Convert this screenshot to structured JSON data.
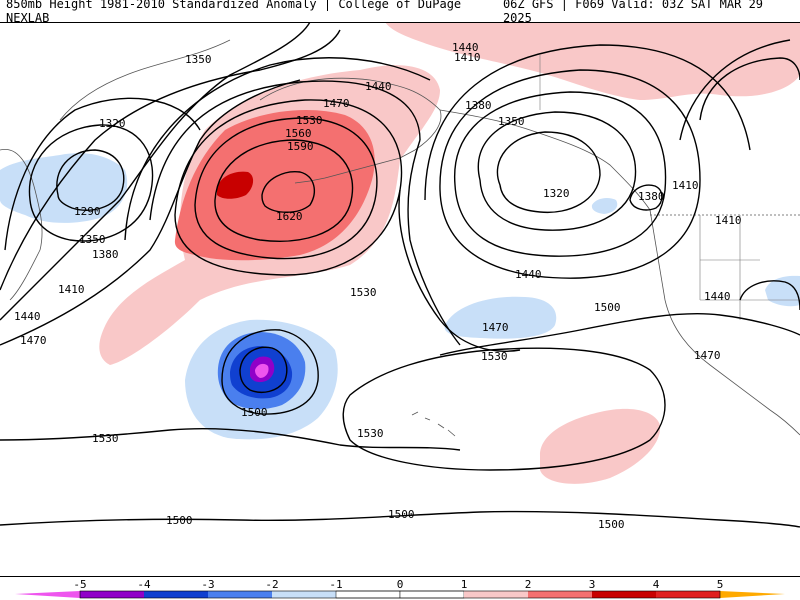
{
  "header": {
    "left_title": "850mb Height 1981-2010 Standardized Anomaly | College of DuPage NEXLAB",
    "right_title": "06Z GFS | F069 Valid: 03Z SAT MAR 29 2025"
  },
  "colors": {
    "neg5": "#ee55ee",
    "neg4": "#9000c8",
    "neg3": "#1040d0",
    "neg2": "#4a7fee",
    "neg1": "#c8dff8",
    "pos1": "#f9c8c8",
    "pos2": "#f47070",
    "pos3": "#c80000",
    "pos4": "#e02020",
    "pos5": "#ffaa00",
    "coast": "#555555",
    "contour": "#000000"
  },
  "colorbar": {
    "ticks": [
      "-5",
      "-4",
      "-3",
      "-2",
      "-1",
      "0",
      "1",
      "2",
      "3",
      "4",
      "5"
    ]
  },
  "contour_labels": [
    "1350",
    "1320",
    "1290",
    "1350",
    "1380",
    "1410",
    "1440",
    "1470",
    "1470",
    "1440",
    "1530",
    "1560",
    "1590",
    "1620",
    "1530",
    "1440",
    "1410",
    "1380",
    "1350",
    "1320",
    "1380",
    "1410",
    "1440",
    "1410",
    "1440",
    "1500",
    "1470",
    "1470",
    "1530",
    "1530",
    "1530",
    "1500",
    "1500",
    "1500",
    "1500"
  ]
}
